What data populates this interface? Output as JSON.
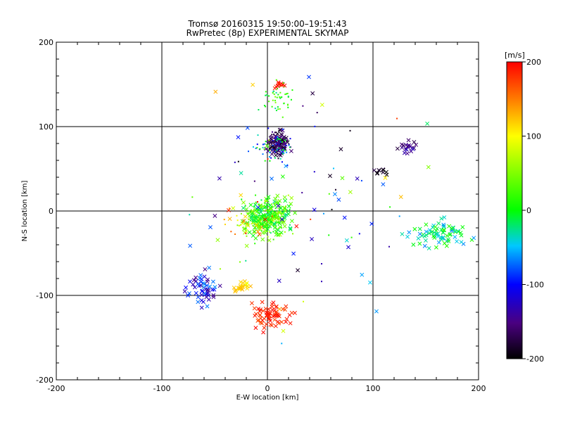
{
  "chart_data": {
    "type": "scatter",
    "title": "Tromsø 20160315 19:50:00–19:51:43",
    "subtitle": "RwPretec (8p) EXPERIMENTAL SKYMAP",
    "xlabel": "E-W location [km]",
    "ylabel": "N-S location [km]",
    "xlim": [
      -200,
      200
    ],
    "ylim": [
      -200,
      200
    ],
    "xticks": [
      "-200",
      "-100",
      "0",
      "100",
      "200"
    ],
    "yticks": [
      "-200",
      "-100",
      "0",
      "100",
      "200"
    ],
    "grid": true,
    "colorbar": {
      "label": "[m/s]",
      "range": [
        -200,
        200
      ],
      "ticks": [
        "200",
        "100",
        "0",
        "-100",
        "-200"
      ],
      "colormap": "rainbow (black-purple-blue-cyan-green-yellow-red)"
    },
    "clusters": [
      {
        "x": [
          -5,
          25
        ],
        "y": [
          60,
          100
        ],
        "vel": [
          -200,
          -140
        ],
        "n": 130,
        "marker": "mixed"
      },
      {
        "x": [
          -25,
          35
        ],
        "y": [
          40,
          110
        ],
        "vel": [
          -120,
          40
        ],
        "n": 60,
        "marker": "dot"
      },
      {
        "x": [
          -10,
          30
        ],
        "y": [
          105,
          160
        ],
        "vel": [
          -40,
          60
        ],
        "n": 50,
        "marker": "dot"
      },
      {
        "x": [
          5,
          20
        ],
        "y": [
          140,
          160
        ],
        "vel": [
          180,
          200
        ],
        "n": 14,
        "marker": "mixed"
      },
      {
        "x": [
          -30,
          30
        ],
        "y": [
          -40,
          25
        ],
        "vel": [
          -30,
          70
        ],
        "n": 320,
        "marker": "mixed"
      },
      {
        "x": [
          -60,
          20
        ],
        "y": [
          -40,
          10
        ],
        "vel": [
          30,
          200
        ],
        "n": 40,
        "marker": "mixed"
      },
      {
        "x": [
          -85,
          -40
        ],
        "y": [
          -120,
          -60
        ],
        "vel": [
          -150,
          -60
        ],
        "n": 55,
        "marker": "cross"
      },
      {
        "x": [
          -40,
          -10
        ],
        "y": [
          -100,
          -80
        ],
        "vel": [
          90,
          130
        ],
        "n": 25,
        "marker": "cross"
      },
      {
        "x": [
          -25,
          30
        ],
        "y": [
          -150,
          -100
        ],
        "vel": [
          170,
          200
        ],
        "n": 70,
        "marker": "cross"
      },
      {
        "x": [
          120,
          200
        ],
        "y": [
          -50,
          -5
        ],
        "vel": [
          -70,
          20
        ],
        "n": 80,
        "marker": "cross"
      },
      {
        "x": [
          120,
          150
        ],
        "y": [
          65,
          90
        ],
        "vel": [
          -170,
          -120
        ],
        "n": 20,
        "marker": "cross"
      },
      {
        "x": [
          90,
          120
        ],
        "y": [
          40,
          55
        ],
        "vel": [
          -200,
          -170
        ],
        "n": 10,
        "marker": "cross"
      },
      {
        "x": [
          -120,
          180
        ],
        "y": [
          -180,
          200
        ],
        "vel": [
          -200,
          200
        ],
        "n": 90,
        "marker": "mixed"
      }
    ]
  }
}
